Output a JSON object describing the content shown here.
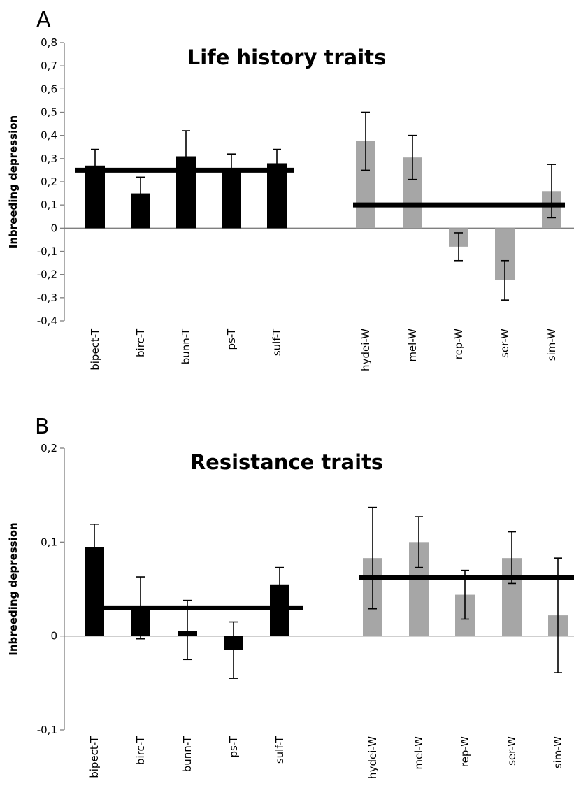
{
  "chart_data": [
    {
      "type": "bar",
      "panel_label": "A",
      "title": "Life history traits",
      "xlabel": "",
      "ylabel": "Inbreeding depression",
      "ylim": [
        -0.4,
        0.8
      ],
      "yticks": [
        "0,8",
        "0,7",
        "0,6",
        "0,5",
        "0,4",
        "0,3",
        "0,2",
        "0,1",
        "0",
        "-0,1",
        "-0,2",
        "-0,3",
        "-0,4"
      ],
      "grid": false,
      "groups": [
        {
          "color": "#000000",
          "categories": [
            "bipect-T",
            "birc-T",
            "bunn-T",
            "ps-T",
            "sulf-T"
          ],
          "values": [
            0.27,
            0.15,
            0.31,
            0.26,
            0.28
          ],
          "err_low": [
            0.07,
            0.07,
            0.11,
            0.06,
            0.06
          ],
          "err_high": [
            0.07,
            0.07,
            0.11,
            0.06,
            0.06
          ],
          "mean": 0.25
        },
        {
          "color": "#a6a6a6",
          "categories": [
            "hydei-W",
            "mel-W",
            "rep-W",
            "ser-W",
            "sim-W"
          ],
          "values": [
            0.375,
            0.305,
            -0.08,
            -0.225,
            0.16
          ],
          "err_low": [
            0.125,
            0.095,
            0.06,
            0.085,
            0.115
          ],
          "err_high": [
            0.125,
            0.095,
            0.06,
            0.085,
            0.115
          ],
          "mean": 0.1
        }
      ]
    },
    {
      "type": "bar",
      "panel_label": "B",
      "title": "Resistance traits",
      "xlabel": "",
      "ylabel": "Inbreeding depression",
      "ylim": [
        -0.1,
        0.2
      ],
      "yticks": [
        "0,2",
        "0,1",
        "0",
        "-0,1"
      ],
      "grid": false,
      "groups": [
        {
          "color": "#000000",
          "categories": [
            "bipect-T",
            "birc-T",
            "bunn-T",
            "ps-T",
            "sulf-T"
          ],
          "values": [
            0.095,
            0.03,
            0.005,
            -0.015,
            0.055
          ],
          "err_low": [
            0.024,
            0.033,
            0.03,
            0.03,
            0.018
          ],
          "err_high": [
            0.024,
            0.033,
            0.033,
            0.03,
            0.018
          ],
          "mean": 0.03
        },
        {
          "color": "#a6a6a6",
          "categories": [
            "hydei-W",
            "mel-W",
            "rep-W",
            "ser-W",
            "sim-W"
          ],
          "values": [
            0.083,
            0.1,
            0.044,
            0.083,
            0.022
          ],
          "err_low": [
            0.054,
            0.027,
            0.026,
            0.027,
            0.061
          ],
          "err_high": [
            0.054,
            0.027,
            0.026,
            0.028,
            0.061
          ],
          "mean": 0.062
        }
      ]
    }
  ]
}
